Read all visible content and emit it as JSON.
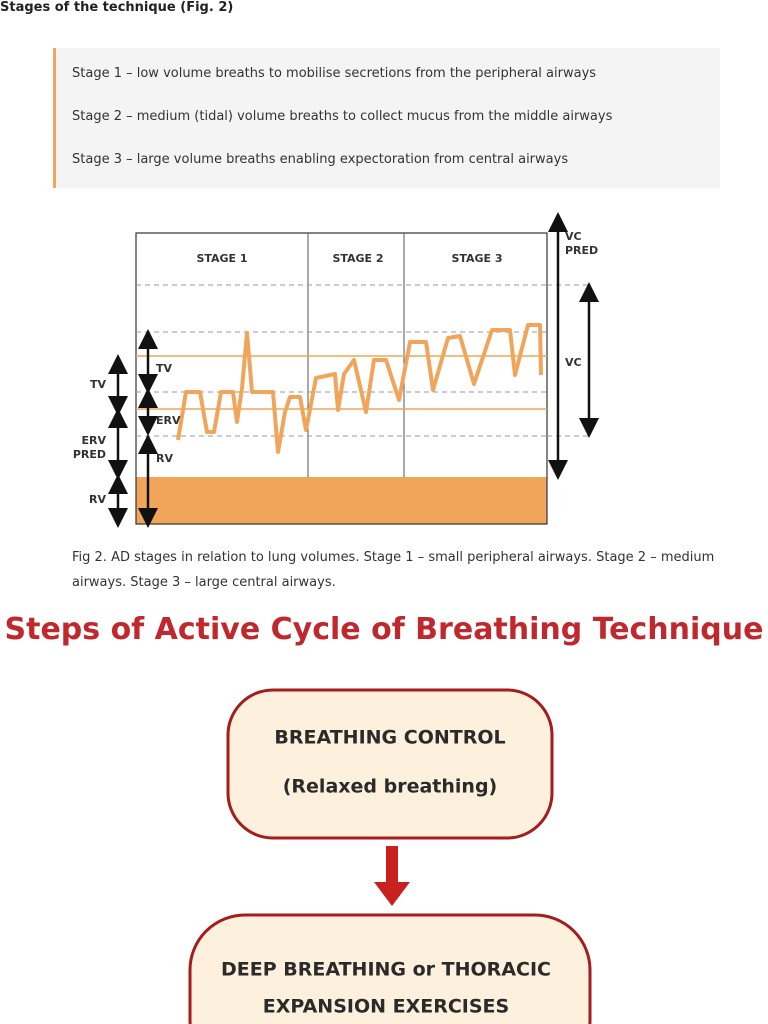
{
  "heading": "Stages of the technique (Fig. 2)",
  "stages": [
    "Stage 1 – low volume breaths to mobilise secretions from the peripheral airways",
    "Stage 2 – medium (tidal) volume breaths to collect mucus from the middle airways",
    "Stage 3 – large volume breaths enabling expectoration from central airways"
  ],
  "figure": {
    "stage_labels": [
      "STAGE 1",
      "STAGE 2",
      "STAGE 3"
    ],
    "left_labels": [
      {
        "lines": [
          "TV"
        ]
      },
      {
        "lines": [
          "ERV",
          "PRED"
        ]
      },
      {
        "lines": [
          "RV"
        ]
      }
    ],
    "inner_labels": [
      "TV",
      "ERV",
      "RV"
    ],
    "right_labels": [
      {
        "lines": [
          "VC",
          "PRED"
        ]
      },
      {
        "lines": [
          "VC"
        ]
      }
    ],
    "caption": "Fig 2. AD stages in relation to lung volumes. Stage 1 – small peripheral airways. Stage 2 – medium airways. Stage 3 – large central airways."
  },
  "acbt": {
    "title": "Steps of Active Cycle of Breathing Technique",
    "steps": [
      {
        "lines": [
          "BREATHING CONTROL",
          "(Relaxed breathing)"
        ]
      },
      {
        "lines": [
          "DEEP BREATHING or THORACIC",
          "EXPANSION EXERCISES"
        ]
      }
    ]
  }
}
